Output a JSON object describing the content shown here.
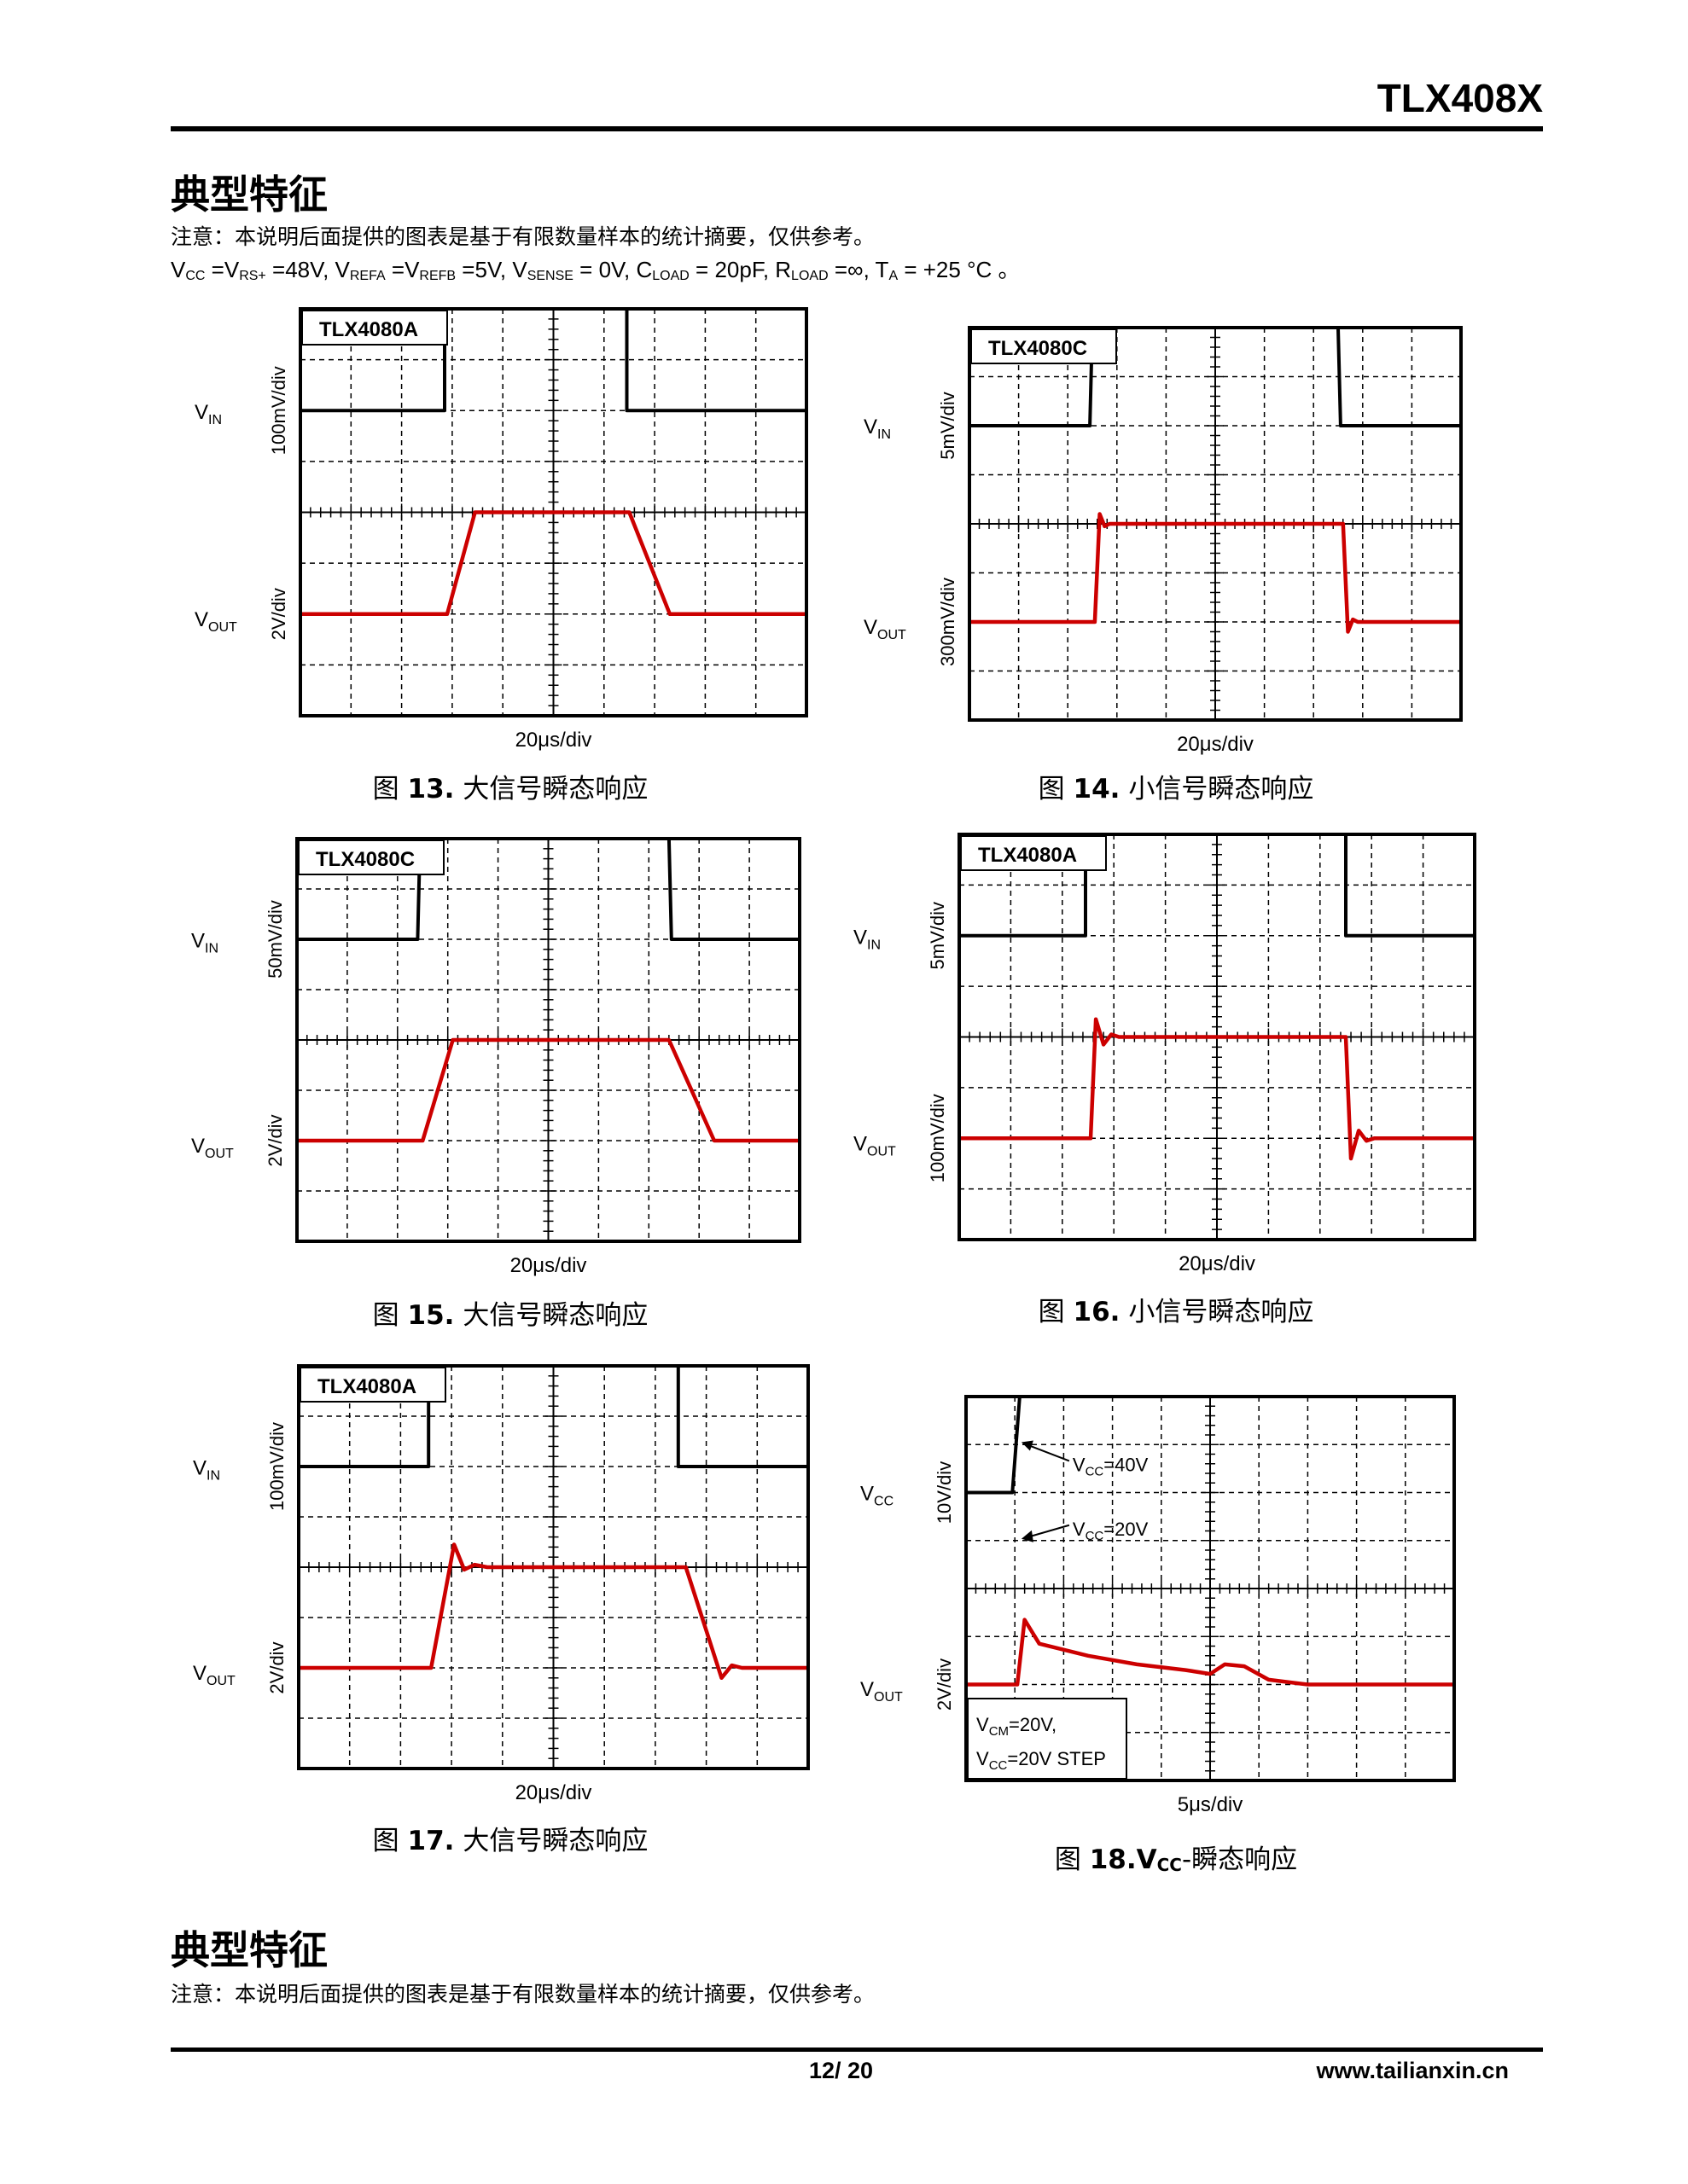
{
  "header": {
    "doc_title": "TLX408X"
  },
  "section1": {
    "title": "典型特征",
    "note": "注意：本说明后面提供的图表是基于有限数量样本的统计摘要，仅供参考。",
    "conditions": [
      {
        "main": "V",
        "sub": "CC"
      },
      {
        "main": " =V",
        "sub": "RS+"
      },
      {
        "main": " =48V, V",
        "sub": "REFA"
      },
      {
        "main": " =V",
        "sub": "REFB"
      },
      {
        "main": " =5V, V",
        "sub": "SENSE"
      },
      {
        "main": " = 0V, C",
        "sub": "LOAD"
      },
      {
        "main": " = 20pF, R",
        "sub": "LOAD"
      },
      {
        "main": " =∞, T",
        "sub": "A"
      },
      {
        "main": " = +25 °C 。",
        "sub": ""
      }
    ]
  },
  "figures": [
    {
      "id": "fig13",
      "device": "TLX4080A",
      "caption_prefix": "图",
      "caption_number": "13.",
      "caption_text": "大信号瞬态响应",
      "top_signal_main": "V",
      "top_signal_sub": "IN",
      "top_scale": "100mV/div",
      "bottom_signal_main": "V",
      "bottom_signal_sub": "OUT",
      "bottom_scale": "2V/div",
      "timebase": "20μs/div",
      "chart_data": {
        "type": "line",
        "grid": true,
        "x_range_divisions": [
          0,
          10
        ],
        "series": [
          {
            "color": "#000000",
            "x": [
              0,
              2.85,
              2.85,
              6.45,
              6.45,
              10
            ],
            "y": [
              0,
              0,
              2,
              2,
              0,
              0
            ]
          },
          {
            "color": "#cc0000",
            "x": [
              0,
              2.9,
              3.45,
              6.5,
              7.3,
              10
            ],
            "y": [
              0,
              0,
              2,
              2,
              0,
              0
            ]
          }
        ]
      }
    },
    {
      "id": "fig14",
      "device": "TLX4080C",
      "caption_prefix": "图",
      "caption_number": "14.",
      "caption_text": "小信号瞬态响应",
      "top_signal_main": "V",
      "top_signal_sub": "IN",
      "top_scale": "5mV/div",
      "bottom_signal_main": "V",
      "bottom_signal_sub": "OUT",
      "bottom_scale": "300mV/div",
      "timebase": "20μs/div",
      "chart_data": {
        "type": "line",
        "grid": true,
        "x_range_divisions": [
          0,
          10
        ],
        "series": [
          {
            "color": "#000000",
            "x": [
              0,
              2.45,
              2.5,
              7.5,
              7.55,
              10
            ],
            "y": [
              0,
              0,
              2,
              2,
              0,
              0
            ]
          },
          {
            "color": "#cc0000",
            "x": [
              0,
              2.55,
              2.65,
              2.75,
              2.85,
              7.6,
              7.7,
              7.8,
              7.9,
              10
            ],
            "y": [
              0,
              0,
              2.2,
              1.95,
              2,
              2,
              -0.2,
              0.05,
              0,
              0
            ]
          }
        ]
      }
    },
    {
      "id": "fig15",
      "device": "TLX4080C",
      "caption_prefix": "图",
      "caption_number": "15.",
      "caption_text": "大信号瞬态响应",
      "top_signal_main": "V",
      "top_signal_sub": "IN",
      "top_scale": "50mV/div",
      "bottom_signal_main": "V",
      "bottom_signal_sub": "OUT",
      "bottom_scale": "2V/div",
      "timebase": "20μs/div",
      "chart_data": {
        "type": "line",
        "grid": true,
        "x_range_divisions": [
          0,
          10
        ],
        "series": [
          {
            "color": "#000000",
            "x": [
              0,
              2.4,
              2.45,
              7.4,
              7.45,
              10
            ],
            "y": [
              0,
              0,
              2,
              2,
              0,
              0
            ]
          },
          {
            "color": "#cc0000",
            "x": [
              0,
              2.5,
              3.1,
              7.4,
              8.3,
              10
            ],
            "y": [
              0,
              0,
              2,
              2,
              0,
              0
            ]
          }
        ]
      }
    },
    {
      "id": "fig16",
      "device": "TLX4080A",
      "caption_prefix": "图",
      "caption_number": "16.",
      "caption_text": "小信号瞬态响应",
      "top_signal_main": "V",
      "top_signal_sub": "IN",
      "top_scale": "5mV/div",
      "bottom_signal_main": "V",
      "bottom_signal_sub": "OUT",
      "bottom_scale": "100mV/div",
      "timebase": "20μs/div",
      "chart_data": {
        "type": "line",
        "grid": true,
        "x_range_divisions": [
          0,
          10
        ],
        "series": [
          {
            "color": "#000000",
            "x": [
              0,
              2.45,
              2.45,
              7.5,
              7.5,
              10
            ],
            "y": [
              0,
              0,
              2,
              2,
              0,
              0
            ]
          },
          {
            "color": "#cc0000",
            "x": [
              0,
              2.55,
              2.65,
              2.8,
              2.95,
              3.1,
              7.5,
              7.6,
              7.75,
              7.9,
              8.05,
              10
            ],
            "y": [
              0,
              0,
              2.35,
              1.85,
              2.05,
              2,
              2,
              -0.4,
              0.15,
              -0.05,
              0,
              0
            ]
          }
        ]
      }
    },
    {
      "id": "fig17",
      "device": "TLX4080A",
      "caption_prefix": "图",
      "caption_number": "17.",
      "caption_text": "大信号瞬态响应",
      "top_signal_main": "V",
      "top_signal_sub": "IN",
      "top_scale": "100mV/div",
      "bottom_signal_main": "V",
      "bottom_signal_sub": "OUT",
      "bottom_scale": "2V/div",
      "timebase": "20μs/div",
      "chart_data": {
        "type": "line",
        "grid": true,
        "x_range_divisions": [
          0,
          10
        ],
        "series": [
          {
            "color": "#000000",
            "x": [
              0,
              2.55,
              2.55,
              7.45,
              7.45,
              10
            ],
            "y": [
              0,
              0,
              2,
              2,
              0,
              0
            ]
          },
          {
            "color": "#cc0000",
            "x": [
              0,
              2.6,
              3.05,
              3.25,
              3.45,
              3.7,
              7.6,
              8.3,
              8.5,
              8.7,
              10
            ],
            "y": [
              0,
              0,
              2.45,
              1.95,
              2.05,
              2,
              2,
              -0.2,
              0.05,
              0,
              0
            ]
          }
        ]
      }
    },
    {
      "id": "fig18",
      "caption_prefix": "图",
      "caption_number": "18.",
      "caption_v": "V",
      "caption_v_sub": "CC",
      "caption_text": "-瞬态响应",
      "top_signal_main": "V",
      "top_signal_sub": "CC",
      "top_scale": "10V/div",
      "bottom_signal_main": "V",
      "bottom_signal_sub": "OUT",
      "bottom_scale": "2V/div",
      "timebase": "5μs/div",
      "annotations": {
        "upper_main": "V",
        "upper_sub": "CC",
        "upper_value": "=40V",
        "lower_main": "V",
        "lower_sub": "CC",
        "lower_value": "=20V",
        "box_line1_main": "V",
        "box_line1_sub": "CM",
        "box_line1_value": "=20V,",
        "box_line2_main": "V",
        "box_line2_sub": "CC",
        "box_line2_value": "=20V STEP"
      },
      "chart_data": {
        "type": "line",
        "grid": true,
        "x_range_divisions": [
          0,
          10
        ],
        "series": [
          {
            "color": "#000000",
            "x": [
              0,
              0.95,
              1.1,
              10
            ],
            "y": [
              0,
              0,
              2,
              2
            ]
          },
          {
            "color": "#cc0000",
            "x": [
              0,
              1.05,
              1.2,
              1.5,
              2.5,
              3.5,
              4.5,
              5.0,
              5.3,
              5.7,
              6.2,
              7.0,
              10
            ],
            "y": [
              0,
              0,
              1.35,
              0.85,
              0.6,
              0.42,
              0.3,
              0.22,
              0.42,
              0.38,
              0.1,
              0,
              0
            ]
          }
        ]
      }
    }
  ],
  "section2": {
    "title": "典型特征",
    "note": "注意：本说明后面提供的图表是基于有限数量样本的统计摘要，仅供参考。"
  },
  "footer": {
    "page_number": "12/ 20",
    "website": "www.tailianxin.cn"
  }
}
